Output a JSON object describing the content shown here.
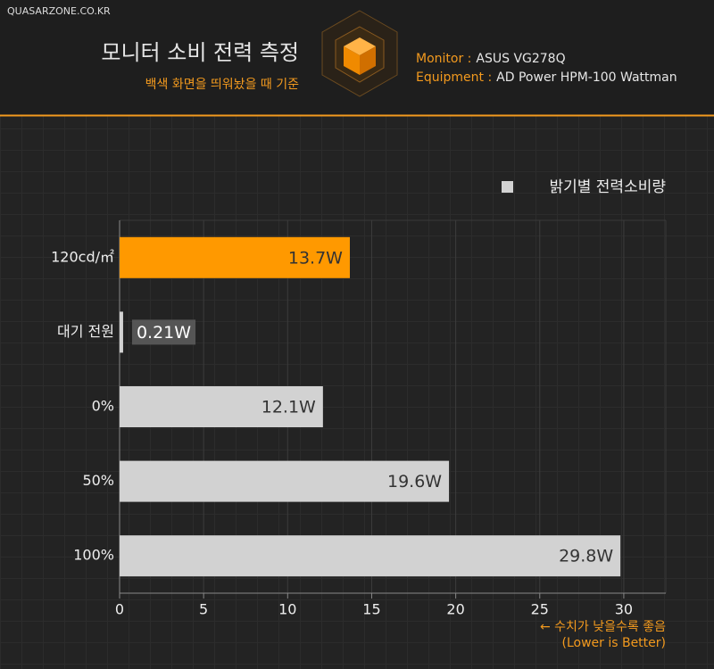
{
  "header": {
    "site": "QUASARZONE.CO.KR",
    "title": "모니터 소비 전력 측정",
    "subtitle": "백색 화면을 띄워놨을 때 기준",
    "specs": [
      {
        "label": "Monitor :",
        "value": "ASUS VG278Q"
      },
      {
        "label": "Equipment :",
        "value": "AD Power HPM-100 Wattman"
      }
    ]
  },
  "chart_data": {
    "type": "barh",
    "categories": [
      "120cd/㎡",
      "대기 전원",
      "0%",
      "50%",
      "100%"
    ],
    "series": [
      {
        "name": "밝기별 전력소비량",
        "color": "#d2d2d2",
        "values": [
          13.7,
          0.21,
          12.1,
          19.6,
          29.8
        ],
        "value_labels": [
          "13.7W",
          "0.21W",
          "12.1W",
          "19.6W",
          "29.8W"
        ],
        "colors": [
          "#ff9900",
          "#d2d2d2",
          "#d2d2d2",
          "#d2d2d2",
          "#d2d2d2"
        ]
      }
    ],
    "xlim": [
      0,
      32.5
    ],
    "xticks": [
      0,
      5,
      10,
      15,
      20,
      25,
      30
    ],
    "grid": true,
    "legend": "top-right",
    "annotations": [
      "← 수치가 낮을수록 좋음",
      "(Lower is Better)"
    ]
  }
}
